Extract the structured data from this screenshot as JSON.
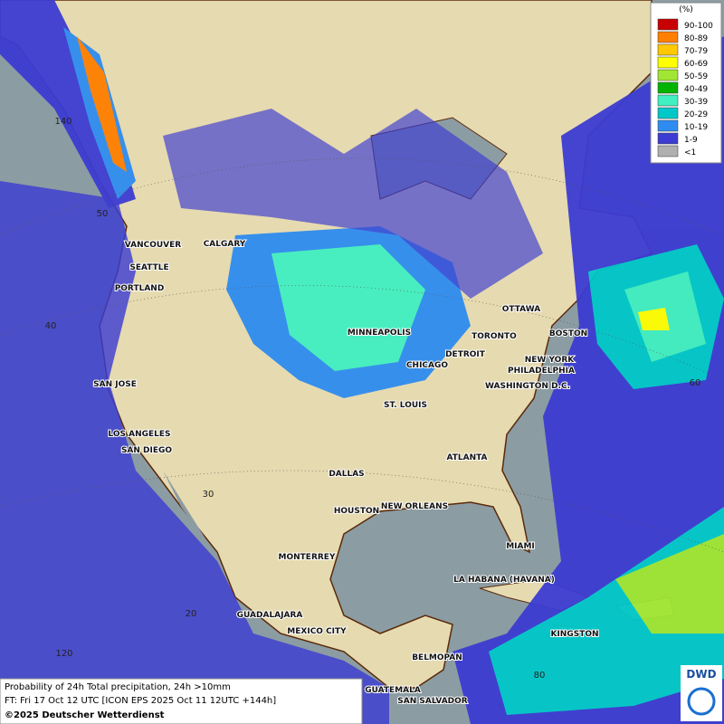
{
  "legend": {
    "title": "(%)",
    "items": [
      {
        "label": "90-100",
        "color": "#c80000"
      },
      {
        "label": "80-89",
        "color": "#ff7f00"
      },
      {
        "label": "70-79",
        "color": "#ffc800"
      },
      {
        "label": "60-69",
        "color": "#ffff00"
      },
      {
        "label": "50-59",
        "color": "#a0e632"
      },
      {
        "label": "40-49",
        "color": "#00b400"
      },
      {
        "label": "30-39",
        "color": "#40f0c0"
      },
      {
        "label": "20-29",
        "color": "#00c8c8"
      },
      {
        "label": "10-19",
        "color": "#2e8cf0"
      },
      {
        "label": "1-9",
        "color": "#3c3cd2"
      },
      {
        "label": "<1",
        "color": "#b0b0b0"
      }
    ]
  },
  "cities": [
    "VANCOUVER",
    "CALGARY",
    "SEATTLE",
    "PORTLAND",
    "MINNEAPOLIS",
    "OTTAWA",
    "TORONTO",
    "BOSTON",
    "DETROIT",
    "CHICAGO",
    "NEW YORK",
    "PHILADELPHIA",
    "SAN JOSE",
    "WASHINGTON D.C.",
    "ST. LOUIS",
    "LOS ANGELES",
    "SAN DIEGO",
    "ATLANTA",
    "DALLAS",
    "HOUSTON",
    "NEW ORLEANS",
    "MIAMI",
    "MONTERREY",
    "LA HABANA (HAVANA)",
    "GUADALAJARA",
    "KINGSTON",
    "MEXICO CITY",
    "BELMOPAN",
    "GUATEMALA",
    "SAN SALVADOR"
  ],
  "grid_labels": [
    "140",
    "50",
    "40",
    "30",
    "20",
    "120",
    "60",
    "80"
  ],
  "footer": {
    "line1": "Probability of 24h Total precipitation, 24h >10mm",
    "line2": "FT: Fri 17 Oct 12 UTC [ICON EPS 2025 Oct 11 12UTC +144h]",
    "line3": "©2025 Deutscher Wetterdienst"
  },
  "logo": "DWD"
}
